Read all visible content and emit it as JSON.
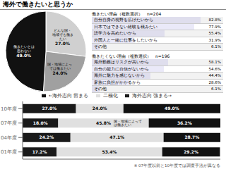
{
  "chart_data": [
    {
      "type": "pie",
      "title": "海外で働きたいと思うか",
      "categories": [
        "どんな国・\n地域でも働き\nたい",
        "国・地域によっ\nては働きたい",
        "働きたいとは\n思わない"
      ],
      "values": [
        27.0,
        24.0,
        49.0
      ],
      "value_labels": [
        "27.0%",
        "24.0%",
        "49.0%"
      ],
      "colors": [
        "#d0d0d0",
        "#a0a0a0",
        "#111111"
      ],
      "data_labels": true
    },
    {
      "type": "table",
      "title": "働きたい理由（複数選択）　n=204",
      "categories": [
        "自分自身の視野を広げたいから",
        "日本ではできない経験を積みたい",
        "語学力を高めたいから",
        "外国人と一緒に仕事をしたいから",
        "その他"
      ],
      "values": [
        82.8,
        77.9,
        55.4,
        31.9,
        6.1
      ],
      "value_labels": [
        "82.8%",
        "77.9%",
        "55.4%",
        "31.9%",
        "6.1%"
      ]
    },
    {
      "type": "table",
      "title": "働きたくない理由（複数選択）　n=196",
      "categories": [
        "海外勤務はリスクが高いから",
        "自分の能力に自信がないから",
        "海外に魅力を感じないから",
        "家族に負担がかかるから",
        "その他"
      ],
      "values": [
        58.1,
        54.6,
        44.4,
        28.6,
        6.1
      ],
      "value_labels": [
        "58.1%",
        "54.6%",
        "44.4%",
        "28.6%",
        "6.1%"
      ]
    },
    {
      "type": "bar",
      "orientation": "horizontal",
      "stacked": true,
      "categories": [
        "10年度",
        "07年度",
        "04年度",
        "01年度"
      ],
      "series": [
        {
          "name": "海外志向 強まる→",
          "color": "#1a1a1a",
          "values": [
            27.0,
            18.0,
            24.2,
            17.2
          ],
          "value_labels": [
            "27.0%",
            "18.0%",
            "24.2%",
            "17.2%"
          ]
        },
        {
          "name": "二極化",
          "color": "#e0e0e0",
          "values": [
            24.0,
            45.8,
            47.1,
            53.4
          ],
          "value_labels": [
            "24.0%",
            "45.8%",
            "47.1%",
            "53.4%"
          ]
        },
        {
          "name": "←海外志向 留まる",
          "color": "#111111",
          "values": [
            49.0,
            36.2,
            28.7,
            29.2
          ],
          "value_labels": [
            "49.0%",
            "36.2%",
            "28.7%",
            "29.2%"
          ]
        }
      ],
      "xlim": [
        0,
        100
      ],
      "tick_labels": "y",
      "data_labels": true,
      "annotations": [
        {
          "text": "国・地域によって\nは働きたい",
          "category": "07年度",
          "series": "二極化"
        },
        {
          "text": "※ 07年度以前と10年度では調査手法が異なる"
        }
      ]
    }
  ]
}
